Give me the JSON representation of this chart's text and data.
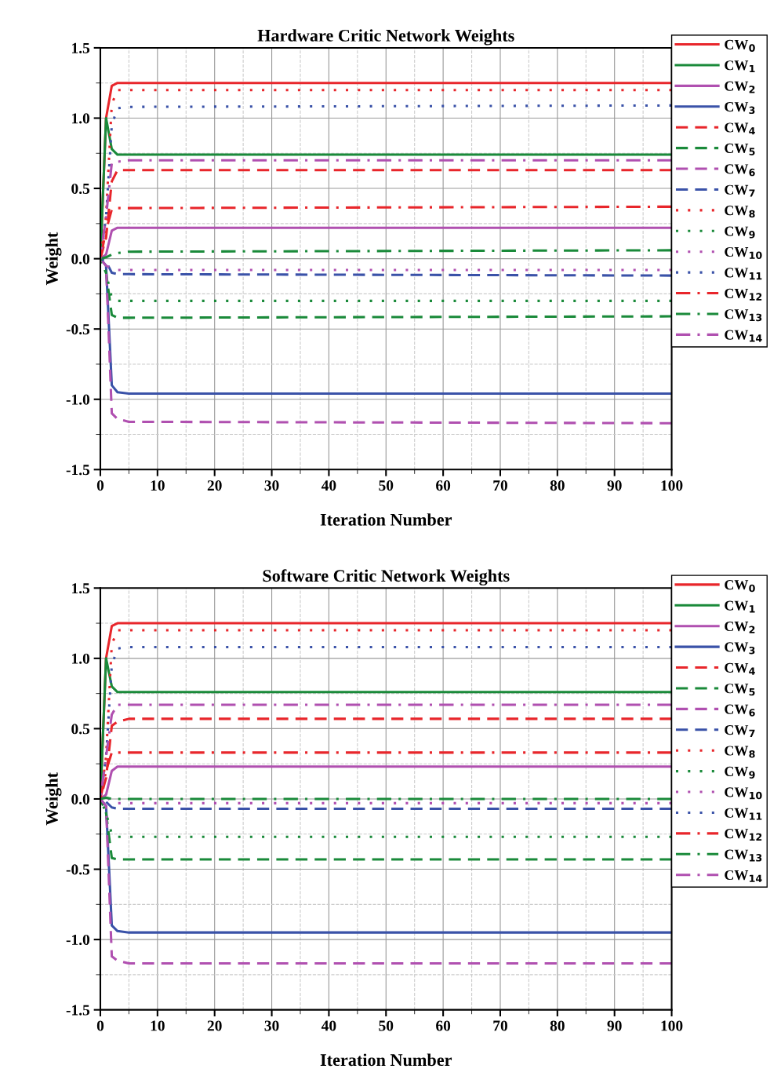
{
  "chart_data": [
    {
      "type": "line",
      "title": "Hardware Critic Network Weights",
      "xlabel": "Iteration Number",
      "ylabel": "Weight",
      "x": [
        0,
        1,
        2,
        3,
        5,
        100
      ],
      "xlim": [
        0,
        100
      ],
      "xticks": [
        0,
        10,
        20,
        30,
        40,
        50,
        60,
        70,
        80,
        90,
        100
      ],
      "ylim": [
        -1.5,
        1.5
      ],
      "yticks": [
        -1.5,
        {
          "value": -1,
          "label": "-1.0"
        },
        -0.5,
        {
          "value": 0,
          "label": "0.0"
        },
        0.5,
        {
          "value": 1,
          "label": "1.0"
        },
        1.5
      ],
      "grid": true,
      "legend": "right",
      "series": [
        {
          "name": "CW$_{0}$",
          "color": "#e8262b",
          "line_style": "solid",
          "values": [
            0,
            1.0,
            1.23,
            1.25,
            1.25,
            1.25
          ]
        },
        {
          "name": "CW$_{1}$",
          "color": "#1a8a3a",
          "line_style": "solid",
          "values": [
            0,
            1.0,
            0.78,
            0.74,
            0.74,
            0.74
          ]
        },
        {
          "name": "CW$_{2}$",
          "color": "#b050b0",
          "line_style": "solid",
          "values": [
            0,
            0.03,
            0.2,
            0.22,
            0.22,
            0.22
          ]
        },
        {
          "name": "CW$_{3}$",
          "color": "#3a52a8",
          "line_style": "solid",
          "values": [
            0,
            -0.05,
            -0.9,
            -0.95,
            -0.96,
            -0.96
          ]
        },
        {
          "name": "CW$_{4}$",
          "color": "#e8262b",
          "line_style": "dashed",
          "values": [
            0,
            0.15,
            0.55,
            0.63,
            0.63,
            0.63
          ]
        },
        {
          "name": "CW$_{5}$",
          "color": "#1a8a3a",
          "line_style": "dashed",
          "values": [
            0,
            -0.1,
            -0.4,
            -0.42,
            -0.42,
            -0.41
          ]
        },
        {
          "name": "CW$_{6}$",
          "color": "#b050b0",
          "line_style": "dashed",
          "values": [
            0,
            -0.05,
            -1.1,
            -1.14,
            -1.16,
            -1.17
          ]
        },
        {
          "name": "CW$_{7}$",
          "color": "#3a52a8",
          "line_style": "dashed",
          "values": [
            0,
            -0.02,
            -0.1,
            -0.11,
            -0.11,
            -0.12
          ]
        },
        {
          "name": "CW$_{8}$",
          "color": "#e8262b",
          "line_style": "dotted",
          "values": [
            0,
            0.3,
            1.1,
            1.2,
            1.2,
            1.2
          ]
        },
        {
          "name": "CW$_{9}$",
          "color": "#1a8a3a",
          "line_style": "dotted",
          "values": [
            0,
            -0.1,
            -0.28,
            -0.3,
            -0.3,
            -0.3
          ]
        },
        {
          "name": "CW$_{10}$",
          "color": "#b050b0",
          "line_style": "dotted",
          "values": [
            0,
            -0.05,
            -0.07,
            -0.08,
            -0.08,
            -0.08
          ]
        },
        {
          "name": "CW$_{11}$",
          "color": "#3a52a8",
          "line_style": "dotted",
          "values": [
            0,
            0.3,
            0.95,
            1.07,
            1.08,
            1.09
          ]
        },
        {
          "name": "CW$_{12}$",
          "color": "#e8262b",
          "line_style": "dashdot",
          "values": [
            0,
            0.2,
            0.35,
            0.36,
            0.36,
            0.37
          ]
        },
        {
          "name": "CW$_{13}$",
          "color": "#1a8a3a",
          "line_style": "dashdot",
          "values": [
            0,
            0.01,
            0.03,
            0.04,
            0.05,
            0.06
          ]
        },
        {
          "name": "CW$_{14}$",
          "color": "#b050b0",
          "line_style": "dashdot",
          "values": [
            0,
            0.3,
            0.68,
            0.69,
            0.7,
            0.7
          ]
        }
      ]
    },
    {
      "type": "line",
      "title": "Software Critic Network Weights",
      "xlabel": "Iteration Number",
      "ylabel": "Weight",
      "x": [
        0,
        1,
        2,
        3,
        5,
        100
      ],
      "xlim": [
        0,
        100
      ],
      "xticks": [
        0,
        10,
        20,
        30,
        40,
        50,
        60,
        70,
        80,
        90,
        100
      ],
      "ylim": [
        -1.5,
        1.5
      ],
      "yticks": [
        -1.5,
        {
          "value": -1,
          "label": "-1.0"
        },
        -0.5,
        {
          "value": 0,
          "label": "0.0"
        },
        0.5,
        {
          "value": 1,
          "label": "1.0"
        },
        1.5
      ],
      "grid": true,
      "legend": "right",
      "series": [
        {
          "name": "CW$_{0}$",
          "color": "#e8262b",
          "line_style": "solid",
          "values": [
            0,
            1.0,
            1.23,
            1.25,
            1.25,
            1.25
          ]
        },
        {
          "name": "CW$_{1}$",
          "color": "#1a8a3a",
          "line_style": "solid",
          "values": [
            0,
            1.0,
            0.8,
            0.76,
            0.76,
            0.76
          ]
        },
        {
          "name": "CW$_{2}$",
          "color": "#b050b0",
          "line_style": "solid",
          "values": [
            0,
            0.03,
            0.2,
            0.23,
            0.23,
            0.23
          ]
        },
        {
          "name": "CW$_{3}$",
          "color": "#3a52a8",
          "line_style": "solid",
          "values": [
            0,
            -0.05,
            -0.9,
            -0.94,
            -0.95,
            -0.95
          ]
        },
        {
          "name": "CW$_{4}$",
          "color": "#e8262b",
          "line_style": "dashed",
          "values": [
            0,
            0.15,
            0.52,
            0.55,
            0.57,
            0.57
          ]
        },
        {
          "name": "CW$_{5}$",
          "color": "#1a8a3a",
          "line_style": "dashed",
          "values": [
            0,
            -0.1,
            -0.42,
            -0.43,
            -0.43,
            -0.43
          ]
        },
        {
          "name": "CW$_{6}$",
          "color": "#b050b0",
          "line_style": "dashed",
          "values": [
            0,
            -0.05,
            -1.12,
            -1.15,
            -1.17,
            -1.17
          ]
        },
        {
          "name": "CW$_{7}$",
          "color": "#3a52a8",
          "line_style": "dashed",
          "values": [
            0,
            -0.02,
            -0.06,
            -0.07,
            -0.07,
            -0.07
          ]
        },
        {
          "name": "CW$_{8}$",
          "color": "#e8262b",
          "line_style": "dotted",
          "values": [
            0,
            0.3,
            1.1,
            1.2,
            1.2,
            1.2
          ]
        },
        {
          "name": "CW$_{9}$",
          "color": "#1a8a3a",
          "line_style": "dotted",
          "values": [
            0,
            -0.1,
            -0.25,
            -0.27,
            -0.27,
            -0.27
          ]
        },
        {
          "name": "CW$_{10}$",
          "color": "#b050b0",
          "line_style": "dotted",
          "values": [
            0,
            0.02,
            -0.02,
            -0.03,
            -0.03,
            -0.03
          ]
        },
        {
          "name": "CW$_{11}$",
          "color": "#3a52a8",
          "line_style": "dotted",
          "values": [
            0,
            0.3,
            0.95,
            1.07,
            1.08,
            1.08
          ]
        },
        {
          "name": "CW$_{12}$",
          "color": "#e8262b",
          "line_style": "dashdot",
          "values": [
            0,
            0.2,
            0.33,
            0.33,
            0.33,
            0.33
          ]
        },
        {
          "name": "CW$_{13}$",
          "color": "#1a8a3a",
          "line_style": "dashdot",
          "values": [
            0,
            0.01,
            0.0,
            0.0,
            0.0,
            0.0
          ]
        },
        {
          "name": "CW$_{14}$",
          "color": "#b050b0",
          "line_style": "dashdot",
          "values": [
            0,
            0.3,
            0.6,
            0.67,
            0.67,
            0.67
          ]
        }
      ]
    }
  ]
}
